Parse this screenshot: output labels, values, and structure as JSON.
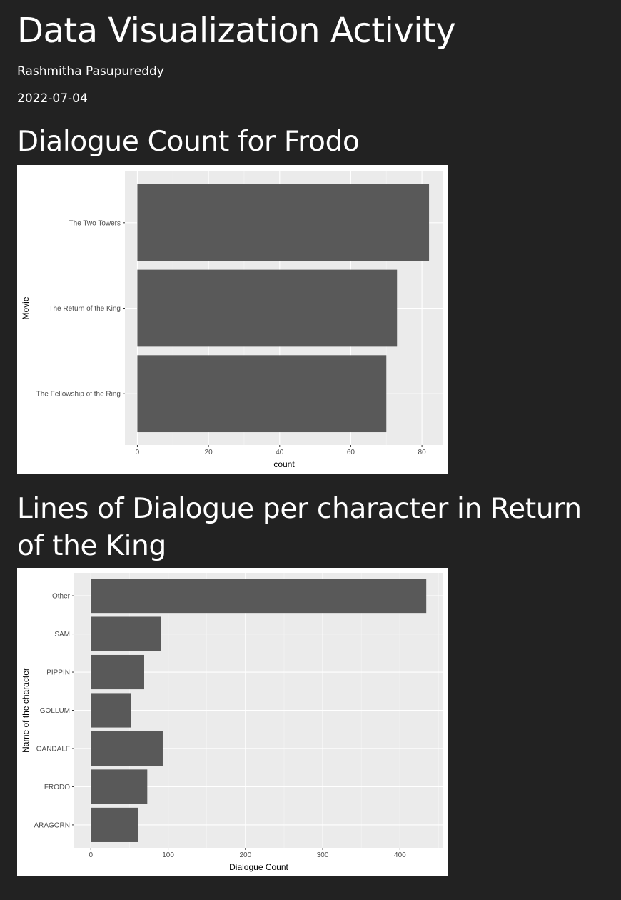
{
  "document": {
    "title": "Data Visualization Activity",
    "author": "Rashmitha Pasupureddy",
    "date": "2022-07-04"
  },
  "sections": [
    {
      "heading": "Dialogue Count for Frodo"
    },
    {
      "heading": "Lines of Dialogue per character in Return of the King"
    }
  ],
  "chart_data": [
    {
      "type": "bar",
      "orientation": "horizontal",
      "categories": [
        "The Two Towers",
        "The Return of the King",
        "The Fellowship of the Ring"
      ],
      "values": [
        82,
        73,
        70
      ],
      "xlabel": "count",
      "ylabel": "Movie",
      "xlim": [
        -3.5,
        86
      ],
      "xticks": [
        0,
        20,
        40,
        60,
        80
      ],
      "grid": true,
      "panel_color": "#ebebeb",
      "bar_color": "#595959"
    },
    {
      "type": "bar",
      "orientation": "horizontal",
      "categories": [
        "Other",
        "SAM",
        "PIPPIN",
        "GOLLUM",
        "GANDALF",
        "FRODO",
        "ARAGORN"
      ],
      "values": [
        434,
        91,
        69,
        52,
        93,
        73,
        61
      ],
      "xlabel": "Dialogue Count",
      "ylabel": "Name of the character",
      "xlim": [
        -21.5,
        456
      ],
      "xticks": [
        0,
        100,
        200,
        300,
        400
      ],
      "grid": true,
      "panel_color": "#ebebeb",
      "bar_color": "#595959"
    }
  ]
}
